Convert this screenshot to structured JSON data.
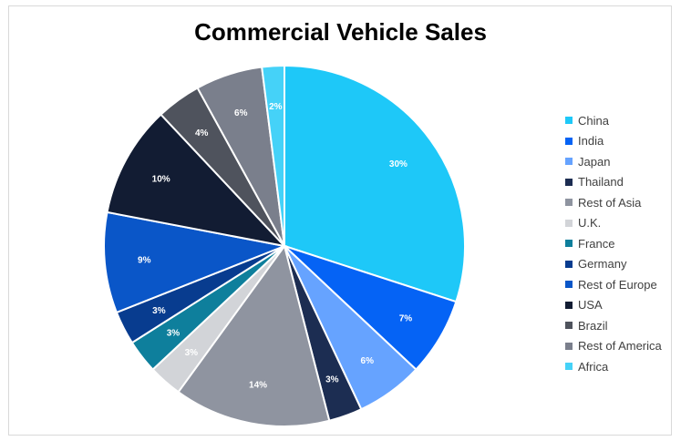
{
  "chart_data": {
    "type": "pie",
    "title": "Commercial Vehicle Sales",
    "categories": [
      "China",
      "India",
      "Japan",
      "Thailand",
      "Rest of Asia",
      "U.K.",
      "France",
      "Germany",
      "Rest of Europe",
      "USA",
      "Brazil",
      "Rest of America",
      "Africa"
    ],
    "values": [
      30,
      7,
      6,
      3,
      14,
      3,
      3,
      3,
      9,
      10,
      4,
      6,
      2
    ],
    "labels": [
      "30%",
      "7%",
      "6%",
      "3%",
      "14%",
      "3%",
      "3%",
      "3%",
      "9%",
      "10%",
      "4%",
      "6%",
      "2%"
    ],
    "colors": [
      "#1ec8f8",
      "#0563f5",
      "#66a3ff",
      "#1c2d52",
      "#8f94a0",
      "#d2d4d8",
      "#0e7f9c",
      "#083c8f",
      "#0a56c8",
      "#121c33",
      "#4f535d",
      "#7a7f8c",
      "#45d2f8"
    ],
    "legend_position": "right"
  }
}
